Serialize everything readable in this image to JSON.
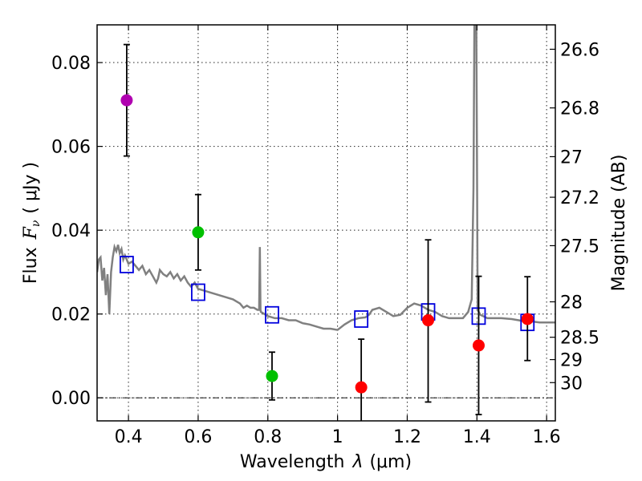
{
  "chart_data": {
    "type": "scatter",
    "xlabel_prefix": "Wavelength",
    "xlabel_symbol": "λ",
    "xlabel_unit": "(μm)",
    "ylabel_prefix": "Flux",
    "ylabel_symbol": "F",
    "ylabel_subscript": "ν",
    "ylabel_unit": "( μJy )",
    "y2label": "Magnitude (AB)",
    "xlim": [
      0.31,
      1.625
    ],
    "ylim": [
      -0.0055,
      0.089
    ],
    "grid": true,
    "x_ticks": [
      0.4,
      0.6,
      0.8,
      1.0,
      1.2,
      1.4,
      1.6
    ],
    "x_tick_labels": [
      "0.4",
      "0.6",
      "0.8",
      "1",
      "1.2",
      "1.4",
      "1.6"
    ],
    "y_ticks": [
      0.0,
      0.02,
      0.04,
      0.06,
      0.08
    ],
    "y_tick_labels": [
      "0.00",
      "0.02",
      "0.04",
      "0.06",
      "0.08"
    ],
    "mag_ticks": [
      {
        "mag": 26.6,
        "label": "26.6"
      },
      {
        "mag": 26.8,
        "label": "26.8"
      },
      {
        "mag": 27.0,
        "label": "27"
      },
      {
        "mag": 27.2,
        "label": "27.2"
      },
      {
        "mag": 27.5,
        "label": "27.5"
      },
      {
        "mag": 28.0,
        "label": "28"
      },
      {
        "mag": 28.5,
        "label": "28.5"
      },
      {
        "mag": 29.0,
        "label": "29"
      },
      {
        "mag": 30.0,
        "label": "30"
      }
    ],
    "photometry": [
      {
        "x": 0.395,
        "y": 0.071,
        "err_low": 0.0133,
        "err_high": 0.0133,
        "color": "#b000b0"
      },
      {
        "x": 0.6,
        "y": 0.0395,
        "err_low": 0.009,
        "err_high": 0.009,
        "color": "#00c000"
      },
      {
        "x": 0.812,
        "y": 0.0052,
        "err_low": 0.0057,
        "err_high": 0.0057,
        "color": "#00c000"
      },
      {
        "x": 1.068,
        "y": 0.0025,
        "err_low": 0.0115,
        "err_high": 0.0115,
        "color": "#ff0000"
      },
      {
        "x": 1.26,
        "y": 0.0185,
        "err_low": 0.0195,
        "err_high": 0.0192,
        "color": "#ff0000"
      },
      {
        "x": 1.405,
        "y": 0.0125,
        "err_low": 0.0165,
        "err_high": 0.0165,
        "color": "#ff0000"
      },
      {
        "x": 1.545,
        "y": 0.0188,
        "err_low": 0.0099,
        "err_high": 0.0101,
        "color": "#ff0000"
      }
    ],
    "model_fluxes": [
      {
        "x": 0.395,
        "y": 0.0318
      },
      {
        "x": 0.6,
        "y": 0.0252
      },
      {
        "x": 0.812,
        "y": 0.0198
      },
      {
        "x": 1.068,
        "y": 0.0188
      },
      {
        "x": 1.26,
        "y": 0.0205
      },
      {
        "x": 1.405,
        "y": 0.0195
      },
      {
        "x": 1.545,
        "y": 0.018
      }
    ],
    "template_spectrum": {
      "color": "#808080",
      "points": [
        [
          0.31,
          0.03
        ],
        [
          0.315,
          0.033
        ],
        [
          0.32,
          0.0335
        ],
        [
          0.325,
          0.028
        ],
        [
          0.33,
          0.031
        ],
        [
          0.335,
          0.0245
        ],
        [
          0.34,
          0.0295
        ],
        [
          0.345,
          0.02
        ],
        [
          0.35,
          0.03
        ],
        [
          0.355,
          0.0335
        ],
        [
          0.36,
          0.036
        ],
        [
          0.365,
          0.035
        ],
        [
          0.37,
          0.0365
        ],
        [
          0.375,
          0.0345
        ],
        [
          0.38,
          0.0355
        ],
        [
          0.385,
          0.033
        ],
        [
          0.39,
          0.034
        ],
        [
          0.4,
          0.032
        ],
        [
          0.41,
          0.0325
        ],
        [
          0.42,
          0.0315
        ],
        [
          0.43,
          0.0305
        ],
        [
          0.44,
          0.0315
        ],
        [
          0.45,
          0.0295
        ],
        [
          0.46,
          0.0305
        ],
        [
          0.47,
          0.029
        ],
        [
          0.48,
          0.0275
        ],
        [
          0.485,
          0.0285
        ],
        [
          0.49,
          0.0305
        ],
        [
          0.5,
          0.0295
        ],
        [
          0.51,
          0.029
        ],
        [
          0.52,
          0.03
        ],
        [
          0.53,
          0.0285
        ],
        [
          0.54,
          0.0295
        ],
        [
          0.55,
          0.028
        ],
        [
          0.56,
          0.029
        ],
        [
          0.57,
          0.0275
        ],
        [
          0.58,
          0.0265
        ],
        [
          0.59,
          0.0275
        ],
        [
          0.6,
          0.026
        ],
        [
          0.62,
          0.0255
        ],
        [
          0.64,
          0.025
        ],
        [
          0.66,
          0.0245
        ],
        [
          0.68,
          0.024
        ],
        [
          0.7,
          0.0235
        ],
        [
          0.72,
          0.0225
        ],
        [
          0.73,
          0.0215
        ],
        [
          0.74,
          0.022
        ],
        [
          0.75,
          0.0215
        ],
        [
          0.76,
          0.0215
        ],
        [
          0.77,
          0.021
        ],
        [
          0.775,
          0.021
        ],
        [
          0.777,
          0.036
        ],
        [
          0.779,
          0.021
        ],
        [
          0.78,
          0.0205
        ],
        [
          0.8,
          0.0195
        ],
        [
          0.82,
          0.019
        ],
        [
          0.84,
          0.019
        ],
        [
          0.86,
          0.0185
        ],
        [
          0.88,
          0.0185
        ],
        [
          0.9,
          0.0178
        ],
        [
          0.92,
          0.0175
        ],
        [
          0.94,
          0.017
        ],
        [
          0.96,
          0.0165
        ],
        [
          0.98,
          0.0165
        ],
        [
          1.0,
          0.0162
        ],
        [
          1.02,
          0.0175
        ],
        [
          1.04,
          0.0185
        ],
        [
          1.06,
          0.019
        ],
        [
          1.08,
          0.0192
        ],
        [
          1.09,
          0.0198
        ],
        [
          1.1,
          0.021
        ],
        [
          1.12,
          0.0215
        ],
        [
          1.14,
          0.0205
        ],
        [
          1.16,
          0.0195
        ],
        [
          1.18,
          0.0198
        ],
        [
          1.2,
          0.0215
        ],
        [
          1.22,
          0.0225
        ],
        [
          1.24,
          0.022
        ],
        [
          1.26,
          0.021
        ],
        [
          1.28,
          0.0205
        ],
        [
          1.3,
          0.0195
        ],
        [
          1.32,
          0.019
        ],
        [
          1.34,
          0.019
        ],
        [
          1.36,
          0.019
        ],
        [
          1.375,
          0.0205
        ],
        [
          1.385,
          0.0235
        ],
        [
          1.39,
          0.05
        ],
        [
          1.393,
          0.095
        ],
        [
          1.398,
          0.095
        ],
        [
          1.4,
          0.06
        ],
        [
          1.402,
          0.021
        ],
        [
          1.41,
          0.0198
        ],
        [
          1.43,
          0.019
        ],
        [
          1.45,
          0.019
        ],
        [
          1.47,
          0.019
        ],
        [
          1.5,
          0.0188
        ],
        [
          1.52,
          0.0185
        ],
        [
          1.54,
          0.0182
        ],
        [
          1.56,
          0.0182
        ],
        [
          1.58,
          0.018
        ],
        [
          1.6,
          0.018
        ],
        [
          1.625,
          0.018
        ]
      ]
    }
  }
}
